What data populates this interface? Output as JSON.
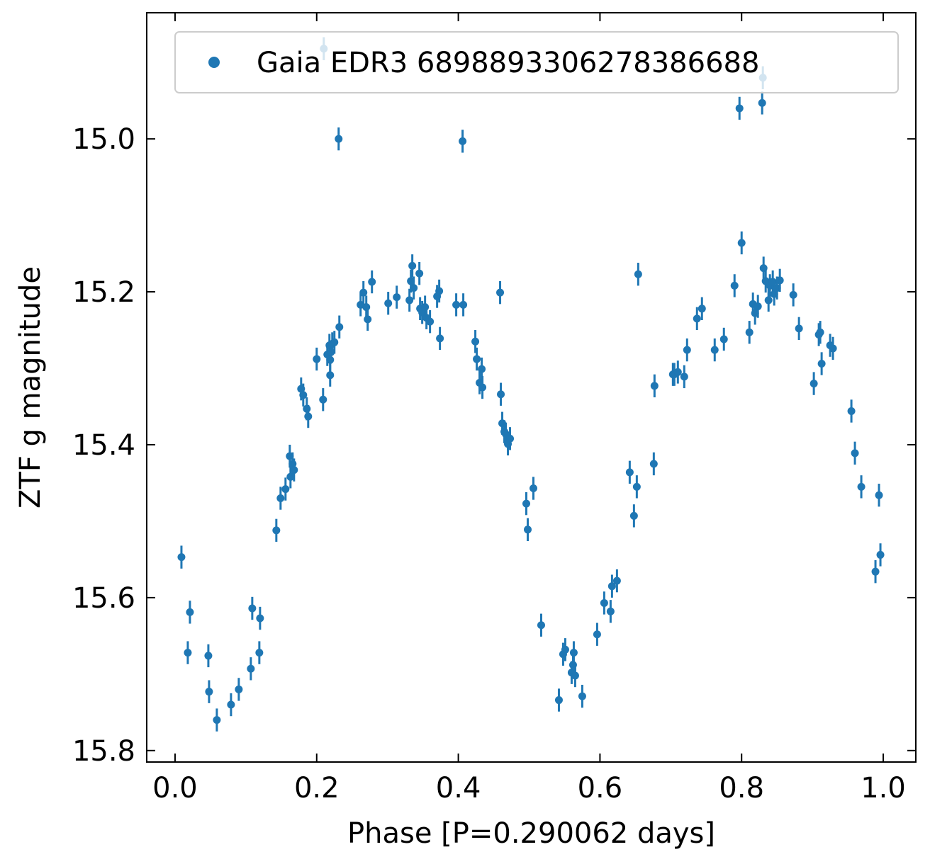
{
  "chart_data": {
    "type": "scatter",
    "title": "",
    "xlabel": "Phase [P=0.290062 days]",
    "ylabel": "ZTF g magnitude",
    "xlim": [
      -0.04,
      1.046
    ],
    "ylim": [
      15.815,
      14.835
    ],
    "y_inverted": true,
    "grid": false,
    "legend_position": "top-right",
    "xticks": [
      0.0,
      0.2,
      0.4,
      0.6,
      0.8,
      1.0
    ],
    "xtick_labels": [
      "0.0",
      "0.2",
      "0.4",
      "0.6",
      "0.8",
      "1.0"
    ],
    "yticks": [
      15.0,
      15.2,
      15.4,
      15.6,
      15.8
    ],
    "ytick_labels": [
      "15.0",
      "15.2",
      "15.4",
      "15.6",
      "15.8"
    ],
    "colors": {
      "series": "#1f77b4",
      "axes": "#000000",
      "background": "#ffffff"
    },
    "series": [
      {
        "name": "Gaia EDR3 6898893306278386688",
        "marker": "circle",
        "error_bar": 0.015,
        "points": [
          [
            0.009,
            15.547
          ],
          [
            0.018,
            15.672
          ],
          [
            0.021,
            15.619
          ],
          [
            0.047,
            15.676
          ],
          [
            0.048,
            15.723
          ],
          [
            0.059,
            15.76
          ],
          [
            0.079,
            15.74
          ],
          [
            0.09,
            15.72
          ],
          [
            0.107,
            15.693
          ],
          [
            0.109,
            15.614
          ],
          [
            0.119,
            15.672
          ],
          [
            0.12,
            15.627
          ],
          [
            0.143,
            15.512
          ],
          [
            0.149,
            15.47
          ],
          [
            0.156,
            15.458
          ],
          [
            0.162,
            15.415
          ],
          [
            0.163,
            15.442
          ],
          [
            0.166,
            15.425
          ],
          [
            0.168,
            15.433
          ],
          [
            0.178,
            15.327
          ],
          [
            0.181,
            15.335
          ],
          [
            0.186,
            15.353
          ],
          [
            0.188,
            15.363
          ],
          [
            0.2,
            15.288
          ],
          [
            0.209,
            15.341
          ],
          [
            0.215,
            15.282
          ],
          [
            0.218,
            15.27
          ],
          [
            0.219,
            15.289
          ],
          [
            0.219,
            15.309
          ],
          [
            0.22,
            15.279
          ],
          [
            0.222,
            15.268
          ],
          [
            0.225,
            15.266
          ],
          [
            0.21,
            14.882
          ],
          [
            0.231,
            15.0
          ],
          [
            0.232,
            15.246
          ],
          [
            0.262,
            15.217
          ],
          [
            0.266,
            15.201
          ],
          [
            0.27,
            15.22
          ],
          [
            0.272,
            15.236
          ],
          [
            0.278,
            15.187
          ],
          [
            0.301,
            15.215
          ],
          [
            0.313,
            15.207
          ],
          [
            0.331,
            15.211
          ],
          [
            0.333,
            15.186
          ],
          [
            0.335,
            15.166
          ],
          [
            0.337,
            15.195
          ],
          [
            0.345,
            15.176
          ],
          [
            0.346,
            15.222
          ],
          [
            0.349,
            15.227
          ],
          [
            0.353,
            15.22
          ],
          [
            0.355,
            15.234
          ],
          [
            0.36,
            15.239
          ],
          [
            0.37,
            15.206
          ],
          [
            0.373,
            15.199
          ],
          [
            0.374,
            15.261
          ],
          [
            0.397,
            15.217
          ],
          [
            0.406,
            15.003
          ],
          [
            0.407,
            15.217
          ],
          [
            0.424,
            15.265
          ],
          [
            0.426,
            15.288
          ],
          [
            0.43,
            15.319
          ],
          [
            0.433,
            15.301
          ],
          [
            0.434,
            15.325
          ],
          [
            0.459,
            15.201
          ],
          [
            0.46,
            15.334
          ],
          [
            0.462,
            15.372
          ],
          [
            0.465,
            15.383
          ],
          [
            0.467,
            15.386
          ],
          [
            0.47,
            15.399
          ],
          [
            0.473,
            15.392
          ],
          [
            0.496,
            15.477
          ],
          [
            0.498,
            15.511
          ],
          [
            0.506,
            15.457
          ],
          [
            0.517,
            15.636
          ],
          [
            0.542,
            15.734
          ],
          [
            0.548,
            15.674
          ],
          [
            0.551,
            15.668
          ],
          [
            0.56,
            15.698
          ],
          [
            0.562,
            15.688
          ],
          [
            0.563,
            15.672
          ],
          [
            0.565,
            15.702
          ],
          [
            0.575,
            15.729
          ],
          [
            0.596,
            15.648
          ],
          [
            0.606,
            15.607
          ],
          [
            0.615,
            15.618
          ],
          [
            0.617,
            15.585
          ],
          [
            0.624,
            15.578
          ],
          [
            0.642,
            15.436
          ],
          [
            0.648,
            15.493
          ],
          [
            0.652,
            15.455
          ],
          [
            0.654,
            15.177
          ],
          [
            0.676,
            15.425
          ],
          [
            0.677,
            15.323
          ],
          [
            0.703,
            15.308
          ],
          [
            0.705,
            15.308
          ],
          [
            0.71,
            15.305
          ],
          [
            0.719,
            15.311
          ],
          [
            0.723,
            15.276
          ],
          [
            0.737,
            15.235
          ],
          [
            0.744,
            15.222
          ],
          [
            0.762,
            15.276
          ],
          [
            0.775,
            15.262
          ],
          [
            0.79,
            15.192
          ],
          [
            0.797,
            14.96
          ],
          [
            0.8,
            15.136
          ],
          [
            0.811,
            15.253
          ],
          [
            0.816,
            15.216
          ],
          [
            0.819,
            15.228
          ],
          [
            0.823,
            15.219
          ],
          [
            0.829,
            14.953
          ],
          [
            0.83,
            14.92
          ],
          [
            0.831,
            15.169
          ],
          [
            0.834,
            15.186
          ],
          [
            0.838,
            15.211
          ],
          [
            0.84,
            15.192
          ],
          [
            0.844,
            15.187
          ],
          [
            0.846,
            15.203
          ],
          [
            0.85,
            15.195
          ],
          [
            0.854,
            15.185
          ],
          [
            0.873,
            15.204
          ],
          [
            0.881,
            15.248
          ],
          [
            0.902,
            15.32
          ],
          [
            0.909,
            15.256
          ],
          [
            0.911,
            15.253
          ],
          [
            0.913,
            15.294
          ],
          [
            0.925,
            15.27
          ],
          [
            0.929,
            15.274
          ],
          [
            0.955,
            15.356
          ],
          [
            0.96,
            15.411
          ],
          [
            0.969,
            15.455
          ],
          [
            0.989,
            15.566
          ],
          [
            0.994,
            15.466
          ],
          [
            0.996,
            15.544
          ]
        ]
      }
    ]
  }
}
